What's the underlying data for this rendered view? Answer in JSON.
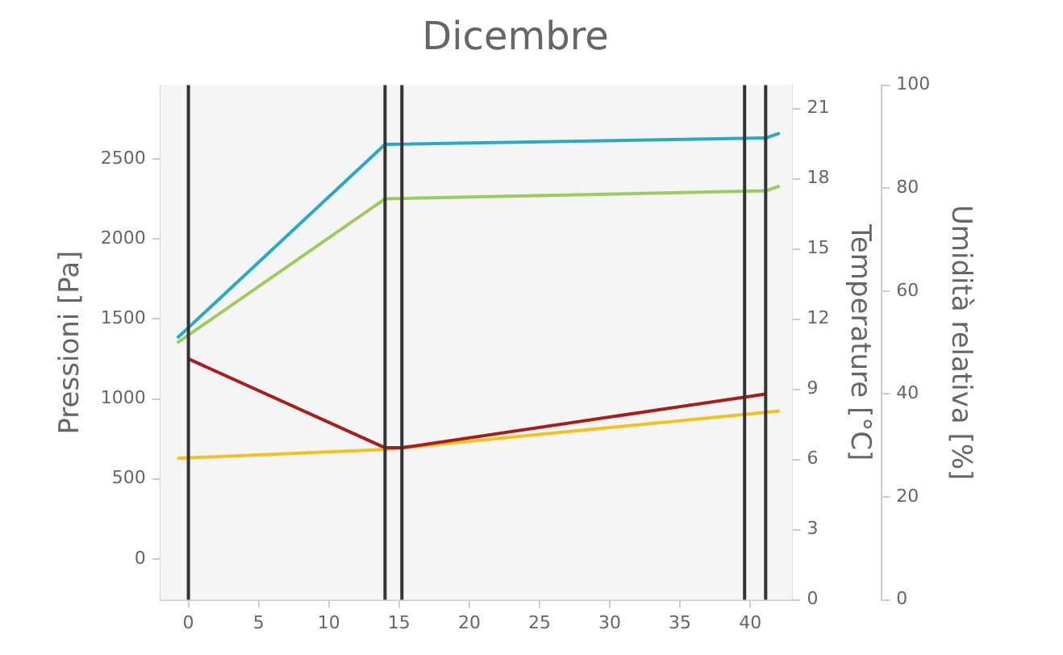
{
  "chart_data": {
    "type": "line",
    "title": "Dicembre",
    "ylabel": "Pressioni [Pa]",
    "y2label": "Temperature [°C]",
    "y3label": "Umidità relativa [%]",
    "xlim": [
      -2,
      43
    ],
    "xticks": [
      0,
      5,
      10,
      15,
      20,
      25,
      30,
      35,
      40
    ],
    "ylim": [
      -255,
      2960
    ],
    "yticks": [
      0,
      500,
      1000,
      1500,
      2000,
      2500
    ],
    "y2lim": [
      0,
      22
    ],
    "y2ticks": [
      0,
      3,
      6,
      9,
      12,
      15,
      18,
      21
    ],
    "y3lim": [
      0,
      100
    ],
    "y3ticks": [
      0,
      20,
      40,
      60,
      80,
      100
    ],
    "grid": false,
    "legend": false,
    "marker": "none",
    "line_style": "solid",
    "series": [
      {
        "color": "#2aa8cc",
        "x": [
          -0.8,
          14,
          41.1,
          42.1
        ],
        "values": [
          1380,
          2590,
          2630,
          2660
        ]
      },
      {
        "color": "#9ccc5c",
        "x": [
          -0.8,
          14,
          41.1,
          42.1
        ],
        "values": [
          1350,
          2250,
          2300,
          2330
        ]
      },
      {
        "color": "#a81c1c",
        "axis": "y2",
        "x": [
          0,
          14,
          15.2,
          41.1
        ],
        "values": [
          10.3,
          6.5,
          6.5,
          8.8
        ]
      },
      {
        "color": "#f2c21a",
        "axis": "y3",
        "x": [
          -0.8,
          14,
          42.1
        ],
        "values": [
          27.5,
          29.2,
          36.7
        ]
      }
    ],
    "ref_lines": [
      {
        "axis": "x",
        "value": 0,
        "color": "#333333"
      },
      {
        "axis": "x",
        "value": 14,
        "color": "#333333"
      },
      {
        "axis": "x",
        "value": 15.2,
        "color": "#333333"
      },
      {
        "axis": "x",
        "value": 39.6,
        "color": "#333333"
      },
      {
        "axis": "x",
        "value": 41.1,
        "color": "#333333"
      }
    ]
  }
}
